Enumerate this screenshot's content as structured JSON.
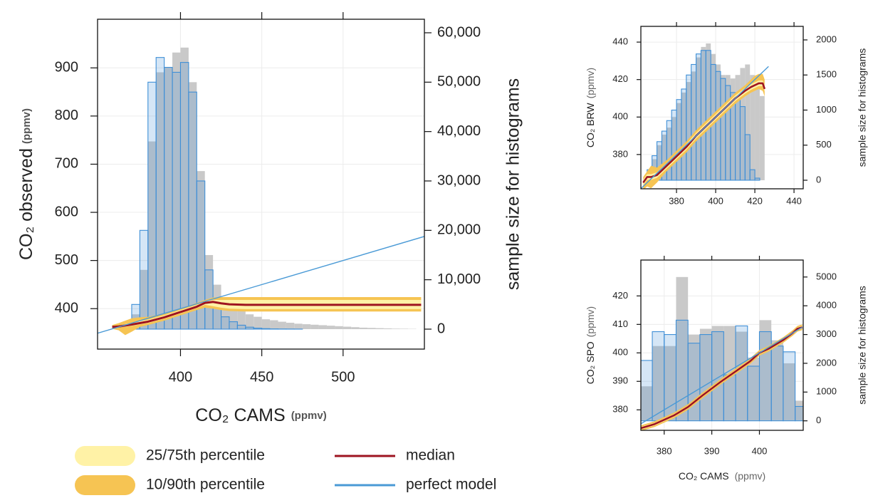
{
  "chart_data": [
    {
      "type": "conditional-quantile",
      "x_label": "CO₂ CAMS",
      "x_label_unit": "(ppmv)",
      "y_label": "CO₂ observed",
      "y_label_unit": "(ppmv)",
      "y2_label": "sample size for histograms",
      "xlim": [
        349,
        550
      ],
      "xticks": [
        400,
        450,
        500
      ],
      "ylim": [
        316,
        1001
      ],
      "yticks": [
        400,
        500,
        600,
        700,
        800,
        900
      ],
      "y2lim": [
        -4040,
        62740
      ],
      "y2ticks": [
        0,
        {
          "value": 10000,
          "label": "10,000"
        },
        {
          "value": 20000,
          "label": "20,000"
        },
        {
          "value": 30000,
          "label": "30,000"
        },
        {
          "value": 40000,
          "label": "40,000"
        },
        {
          "value": 50000,
          "label": "50,000"
        },
        {
          "value": 60000,
          "label": "60,000"
        }
      ],
      "grid": true,
      "legend": "bottom",
      "histograms": [
        {
          "color": "#c9c9c9",
          "style": "fill",
          "bins": [
            360,
            365,
            370,
            375,
            380,
            385,
            390,
            395,
            400,
            405,
            410,
            415,
            420,
            425,
            430,
            435,
            440,
            445,
            450,
            455,
            460,
            465,
            470,
            475,
            480,
            485,
            490,
            495,
            500,
            505,
            510,
            515,
            520,
            525,
            530,
            535,
            540,
            545
          ],
          "counts": [
            300,
            1000,
            3000,
            12000,
            38000,
            52000,
            53000,
            56000,
            57000,
            50000,
            32000,
            15000,
            9000,
            6000,
            5000,
            4000,
            3000,
            2500,
            2000,
            1800,
            1500,
            1300,
            1100,
            1000,
            900,
            800,
            700,
            600,
            500,
            400,
            300,
            250,
            200,
            150,
            100,
            80,
            50
          ]
        },
        {
          "color": "#3f8fd6",
          "style": "outline",
          "bins": [
            360,
            365,
            370,
            375,
            380,
            385,
            390,
            395,
            400,
            405,
            410,
            415,
            420,
            425,
            430,
            435,
            440,
            445,
            450,
            455,
            460,
            465,
            470,
            475,
            480,
            485,
            490,
            495,
            500,
            505,
            510,
            515,
            520,
            525,
            530,
            535,
            540,
            545
          ],
          "counts": [
            500,
            1500,
            5000,
            20000,
            50000,
            55000,
            53000,
            52000,
            54000,
            48000,
            30000,
            12000,
            5000,
            2500,
            1500,
            800,
            400,
            200,
            100,
            50,
            30,
            20,
            10,
            0,
            0,
            0,
            0,
            0,
            0,
            0,
            0,
            0,
            0,
            0,
            0,
            0,
            0
          ]
        }
      ],
      "x": [
        358,
        362,
        366,
        370,
        375,
        380,
        390,
        400,
        410,
        415,
        420,
        425,
        430,
        440,
        450,
        460,
        480,
        500,
        520,
        540,
        548
      ],
      "series": [
        {
          "name": "25/75th percentile",
          "color": "#fff2a6",
          "lower": [
            361,
            362,
            362,
            364,
            367,
            370,
            379,
            390,
            401,
            408,
            405,
            402,
            400,
            399,
            399,
            399,
            399,
            399,
            399,
            399,
            399
          ],
          "upper": [
            364,
            365,
            368,
            370,
            374,
            377,
            386,
            397,
            408,
            415,
            418,
            418,
            418,
            418,
            418,
            418,
            418,
            418,
            418,
            418,
            418
          ]
        },
        {
          "name": "10/90th percentile",
          "color": "#f6c453",
          "lower": [
            358,
            355,
            345,
            352,
            362,
            366,
            375,
            386,
            397,
            402,
            400,
            397,
            395,
            394,
            394,
            394,
            394,
            394,
            394,
            394,
            394
          ],
          "upper": [
            366,
            370,
            375,
            380,
            382,
            383,
            390,
            400,
            412,
            418,
            423,
            424,
            424,
            424,
            424,
            424,
            424,
            424,
            424,
            424,
            424
          ]
        },
        {
          "name": "median",
          "color": "#9e1420",
          "values": [
            362,
            363,
            365,
            367,
            370,
            373,
            382,
            393,
            404,
            412,
            414,
            411,
            409,
            408,
            408,
            408,
            408,
            408,
            408,
            408,
            408
          ]
        },
        {
          "name": "perfect model",
          "color": "#4a9ad6",
          "x": [
            349,
            550
          ],
          "values": [
            349,
            550
          ]
        }
      ]
    },
    {
      "type": "conditional-quantile",
      "y_label": "CO₂ BRW",
      "y_label_unit": "(ppmv)",
      "y2_label": "sample size for histograms",
      "xlim": [
        361.8,
        444.7
      ],
      "xticks": [
        380,
        400,
        420,
        440
      ],
      "ylim": [
        361.7,
        448.4
      ],
      "yticks": [
        380,
        400,
        420,
        440
      ],
      "y2lim": [
        -122,
        2193
      ],
      "y2ticks": [
        0,
        500,
        1000,
        1500,
        2000
      ],
      "grid": true,
      "histograms": [
        {
          "color": "#c9c9c9",
          "style": "fill",
          "bins": [
            365,
            367.5,
            370,
            372.5,
            375,
            377.5,
            380,
            382.5,
            385,
            387.5,
            390,
            392.5,
            395,
            397.5,
            400,
            402.5,
            405,
            407.5,
            410,
            412.5,
            415,
            417.5,
            420,
            422.5,
            425
          ],
          "counts": [
            100,
            300,
            500,
            650,
            750,
            900,
            1100,
            1250,
            1400,
            1550,
            1750,
            1900,
            1950,
            1800,
            1650,
            1500,
            1500,
            1450,
            1500,
            1600,
            1650,
            1500,
            1350,
            1200
          ]
        },
        {
          "color": "#3f8fd6",
          "style": "outline",
          "bins": [
            365,
            367.5,
            370,
            372.5,
            375,
            377.5,
            380,
            382.5,
            385,
            387.5,
            390,
            392.5,
            395,
            397.5,
            400,
            402.5,
            405,
            407.5,
            410,
            412.5,
            415,
            417.5,
            420,
            422.5,
            425
          ],
          "counts": [
            150,
            350,
            550,
            700,
            850,
            1000,
            1150,
            1300,
            1500,
            1650,
            1800,
            1850,
            1850,
            1650,
            1550,
            1450,
            1350,
            1250,
            1150,
            1050,
            650,
            150,
            30,
            0
          ]
        }
      ],
      "x": [
        363,
        365,
        367,
        370,
        375,
        380,
        385,
        390,
        395,
        400,
        405,
        410,
        415,
        418,
        420,
        422,
        424,
        425
      ],
      "series": [
        {
          "color": "#fff2a6",
          "lower": [
            363.5,
            366.5,
            366.5,
            367.5,
            372.5,
            377.5,
            382.5,
            388.5,
            393.5,
            398.5,
            403.5,
            408.5,
            412.5,
            414.5,
            415.5,
            416.5,
            416.5,
            413.5
          ],
          "upper": [
            366.5,
            369.5,
            369.5,
            370.5,
            375.5,
            380.5,
            385.5,
            391.5,
            396.5,
            401.5,
            406.5,
            411.5,
            415.5,
            417.5,
            418.5,
            419.5,
            419.5,
            416.5
          ]
        },
        {
          "color": "#f6c453",
          "lower": [
            361,
            363,
            362,
            365,
            371,
            376,
            381,
            387,
            392,
            397,
            402,
            407,
            411,
            413,
            414,
            415,
            414,
            411
          ],
          "upper": [
            368,
            371,
            374,
            373,
            377,
            382,
            387,
            393,
            398,
            403,
            408,
            413,
            417,
            420,
            422,
            423,
            423,
            420
          ]
        },
        {
          "color": "#9e1420",
          "values": [
            365,
            368,
            368,
            369,
            374,
            379,
            384,
            390,
            395,
            400,
            405,
            410,
            414,
            416,
            417,
            418,
            418,
            415
          ]
        },
        {
          "color": "#4a9ad6",
          "x": [
            362,
            427
          ],
          "values": [
            362,
            427
          ]
        }
      ]
    },
    {
      "type": "conditional-quantile",
      "x_label": "CO₂ CAMS",
      "x_label_unit": "(ppmv)",
      "y_label": "CO₂ SPO",
      "y_label_unit": "(ppmv)",
      "y2_label": "sample size for histograms",
      "xlim": [
        375.1,
        409.2
      ],
      "xticks": [
        380,
        390,
        400
      ],
      "ylim": [
        372.8,
        432.6
      ],
      "yticks": [
        380,
        390,
        400,
        410,
        420
      ],
      "y2lim": [
        -330,
        5590
      ],
      "y2ticks": [
        0,
        1000,
        2000,
        3000,
        4000,
        5000
      ],
      "grid": true,
      "histograms": [
        {
          "color": "#c9c9c9",
          "style": "fill",
          "bins": [
            375,
            377.5,
            380,
            382.5,
            385,
            387.5,
            390,
            392.5,
            395,
            397.5,
            400,
            402.5,
            405,
            407.5,
            410
          ],
          "counts": [
            1200,
            2600,
            2600,
            5000,
            3000,
            3200,
            3300,
            3300,
            3100,
            2200,
            3500,
            2800,
            2000,
            700
          ]
        },
        {
          "color": "#3f8fd6",
          "style": "outline",
          "bins": [
            375,
            377.5,
            380,
            382.5,
            385,
            387.5,
            390,
            392.5,
            395,
            397.5,
            400,
            402.5,
            405,
            407.5,
            410
          ],
          "counts": [
            2100,
            3100,
            3000,
            3500,
            2700,
            3000,
            3100,
            1600,
            3300,
            1900,
            3100,
            2600,
            2400,
            500
          ]
        }
      ],
      "x": [
        375,
        376,
        378,
        380,
        382,
        385,
        388,
        390,
        392,
        395,
        398,
        400,
        402,
        405,
        407,
        408,
        409
      ],
      "series": [
        {
          "color": "#fff2a6",
          "lower": [
            373,
            373.5,
            374.5,
            376,
            377.5,
            380.5,
            384.5,
            387,
            389.5,
            393,
            396.5,
            399.5,
            401,
            404,
            406.5,
            408,
            408.5
          ],
          "upper": [
            374,
            374.5,
            375.5,
            377,
            378.5,
            381.5,
            385.5,
            388,
            390.5,
            394,
            397.5,
            400.5,
            402,
            405,
            407.5,
            409,
            409.5
          ]
        },
        {
          "color": "#f6c453",
          "lower": [
            372.5,
            373,
            374,
            375.5,
            377,
            380,
            384,
            386.5,
            389,
            392.5,
            396,
            399,
            400.5,
            403.5,
            406,
            407.5,
            408
          ],
          "upper": [
            374.5,
            375,
            376,
            377.5,
            379,
            382,
            386,
            388.5,
            391,
            394.5,
            398,
            401,
            402.5,
            405.5,
            408,
            409.5,
            410
          ]
        },
        {
          "color": "#9e1420",
          "values": [
            373.5,
            374,
            375,
            376.5,
            378,
            381,
            385,
            387.5,
            390,
            393.5,
            397,
            400,
            401.5,
            404.5,
            407,
            408.5,
            409
          ]
        },
        {
          "color": "#4a9ad6",
          "x": [
            375,
            409
          ],
          "values": [
            375,
            409
          ]
        }
      ]
    }
  ]
}
